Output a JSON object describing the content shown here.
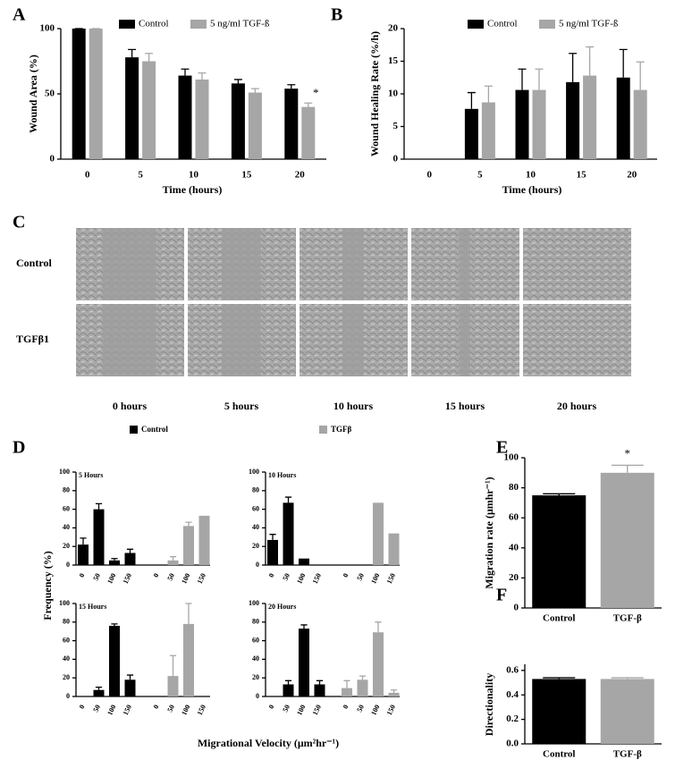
{
  "chart_data": [
    {
      "type": "bar",
      "panel": "A",
      "y_label": "Wound Area (%)",
      "x_label": "Time (hours)",
      "categories": [
        "0",
        "5",
        "10",
        "15",
        "20"
      ],
      "series": [
        {
          "name": "Control",
          "color": "#000000",
          "values": [
            100,
            78,
            64,
            58,
            54
          ],
          "errors": [
            0,
            6,
            5,
            3,
            3
          ]
        },
        {
          "name": "5 ng/ml TGF-ß",
          "color": "#a6a6a6",
          "values": [
            100,
            75,
            61,
            51,
            40
          ],
          "errors": [
            0,
            6,
            5,
            3,
            3
          ]
        }
      ],
      "ylim": [
        0,
        100
      ],
      "yticks": [
        0,
        50,
        100
      ],
      "annotation": "*"
    },
    {
      "type": "bar",
      "panel": "B",
      "y_label": "Wound Healing Rate (%/h)",
      "x_label": "Time (hours)",
      "categories": [
        "0",
        "5",
        "10",
        "15",
        "20"
      ],
      "series": [
        {
          "name": "Control",
          "color": "#000000",
          "values": [
            null,
            7.7,
            10.6,
            11.8,
            12.5
          ],
          "errors": [
            null,
            2.5,
            3.2,
            4.4,
            4.3
          ]
        },
        {
          "name": "5 ng/ml TGF-ß",
          "color": "#a6a6a6",
          "values": [
            null,
            8.7,
            10.6,
            12.8,
            10.6
          ],
          "errors": [
            null,
            2.5,
            3.2,
            4.4,
            4.3
          ]
        }
      ],
      "ylim": [
        0,
        20
      ],
      "yticks": [
        0,
        5,
        10,
        15,
        20
      ]
    },
    {
      "type": "bar",
      "panel": "D",
      "y_label": "Frequency (%)",
      "x_label": "Migrational Velocity (μm²hr⁻¹)",
      "categories": [
        "0",
        "50",
        "100",
        "150"
      ],
      "legend": [
        {
          "name": "Control",
          "color": "#000000"
        },
        {
          "name": "TGFβ",
          "color": "#a6a6a6"
        }
      ],
      "ylim": [
        0,
        100
      ],
      "yticks": [
        0,
        20,
        40,
        60,
        80,
        100
      ],
      "panels": [
        {
          "title": "5 Hours",
          "series": [
            {
              "values": [
                22,
                60,
                5,
                13
              ],
              "errors": [
                7,
                6,
                2,
                4
              ]
            },
            {
              "values": [
                null,
                5,
                42,
                53
              ],
              "errors": [
                null,
                4,
                4,
                null
              ]
            }
          ]
        },
        {
          "title": "10 Hours",
          "series": [
            {
              "values": [
                27,
                67,
                7,
                null
              ],
              "errors": [
                6,
                6,
                null,
                null
              ]
            },
            {
              "values": [
                null,
                null,
                67,
                34
              ],
              "errors": [
                null,
                null,
                null,
                null
              ]
            }
          ]
        },
        {
          "title": "15 Hours",
          "series": [
            {
              "values": [
                null,
                7,
                76,
                18
              ],
              "errors": [
                null,
                3,
                2,
                5
              ]
            },
            {
              "values": [
                null,
                22,
                78,
                null
              ],
              "errors": [
                null,
                22,
                22,
                null
              ]
            }
          ]
        },
        {
          "title": "20 Hours",
          "series": [
            {
              "values": [
                null,
                13,
                73,
                13
              ],
              "errors": [
                null,
                4,
                4,
                4
              ]
            },
            {
              "values": [
                9,
                18,
                69,
                4
              ],
              "errors": [
                8,
                4,
                11,
                3
              ]
            }
          ]
        }
      ]
    },
    {
      "type": "bar",
      "panel": "E",
      "y_label": "Migration rate (μmhr⁻¹)",
      "categories": [
        "Control",
        "TGF-β"
      ],
      "values": [
        75,
        90
      ],
      "errors": [
        1,
        5
      ],
      "colors": [
        "#000000",
        "#a6a6a6"
      ],
      "ylim": [
        0,
        100
      ],
      "yticks": [
        0,
        20,
        40,
        60,
        80,
        100
      ],
      "annotation": "*"
    },
    {
      "type": "bar",
      "panel": "F",
      "y_label": "Directionality",
      "categories": [
        "Control",
        "TGF-β"
      ],
      "values": [
        0.53,
        0.53
      ],
      "errors": [
        0.01,
        0.01
      ],
      "colors": [
        "#000000",
        "#a6a6a6"
      ],
      "ylim": [
        0,
        0.65
      ],
      "yticks": [
        {
          "value": 0,
          "label": "0.0"
        },
        0.2,
        0.4,
        0.6
      ]
    }
  ],
  "panel_c": {
    "panel": "C",
    "rows": [
      "Control",
      "TGFβ1"
    ],
    "columns": [
      "0 hours",
      "5 hours",
      "10 hours",
      "15 hours",
      "20 hours"
    ]
  }
}
